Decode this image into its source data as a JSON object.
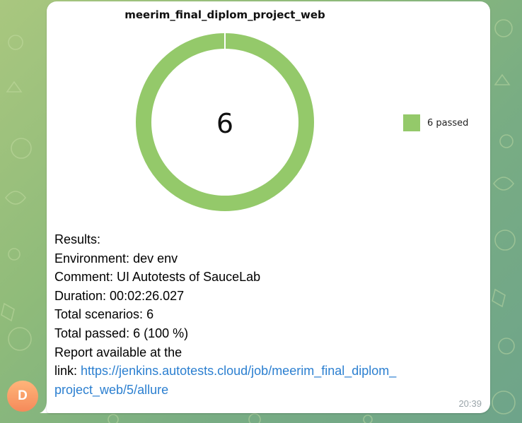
{
  "message": {
    "time": "20:39",
    "avatar_initial": "D",
    "lines": {
      "results_label": "Results:",
      "environment_label": "Environment:",
      "environment_value": " dev env",
      "comment_label": "Comment:",
      "comment_value": " UI Autotests of SauceLab",
      "duration_label": "Duration:",
      "duration_value": " 00:02:26.027",
      "total_scenarios_label": "Total scenarios:",
      "total_scenarios_value": " 6",
      "total_passed_label": "Total passed:",
      "total_passed_value": " 6 (100 %)",
      "report_line1": "Report available at the",
      "report_line2_label": "link:",
      "link_part1": "https://jenkins.autotests.cloud/job/meerim_final_diplom_",
      "link_part2": "project_web/5/allure"
    }
  },
  "chart_data": {
    "type": "pie",
    "title": "meerim_final_diplom_project_web",
    "center_label": "6",
    "slices": [
      {
        "name": "6 passed",
        "value": 6,
        "color": "#94c96a"
      }
    ],
    "legend_position": "right"
  },
  "colors": {
    "link": "#2b7fd0",
    "passed": "#94c96a",
    "timestamp": "#9aa4a9"
  }
}
